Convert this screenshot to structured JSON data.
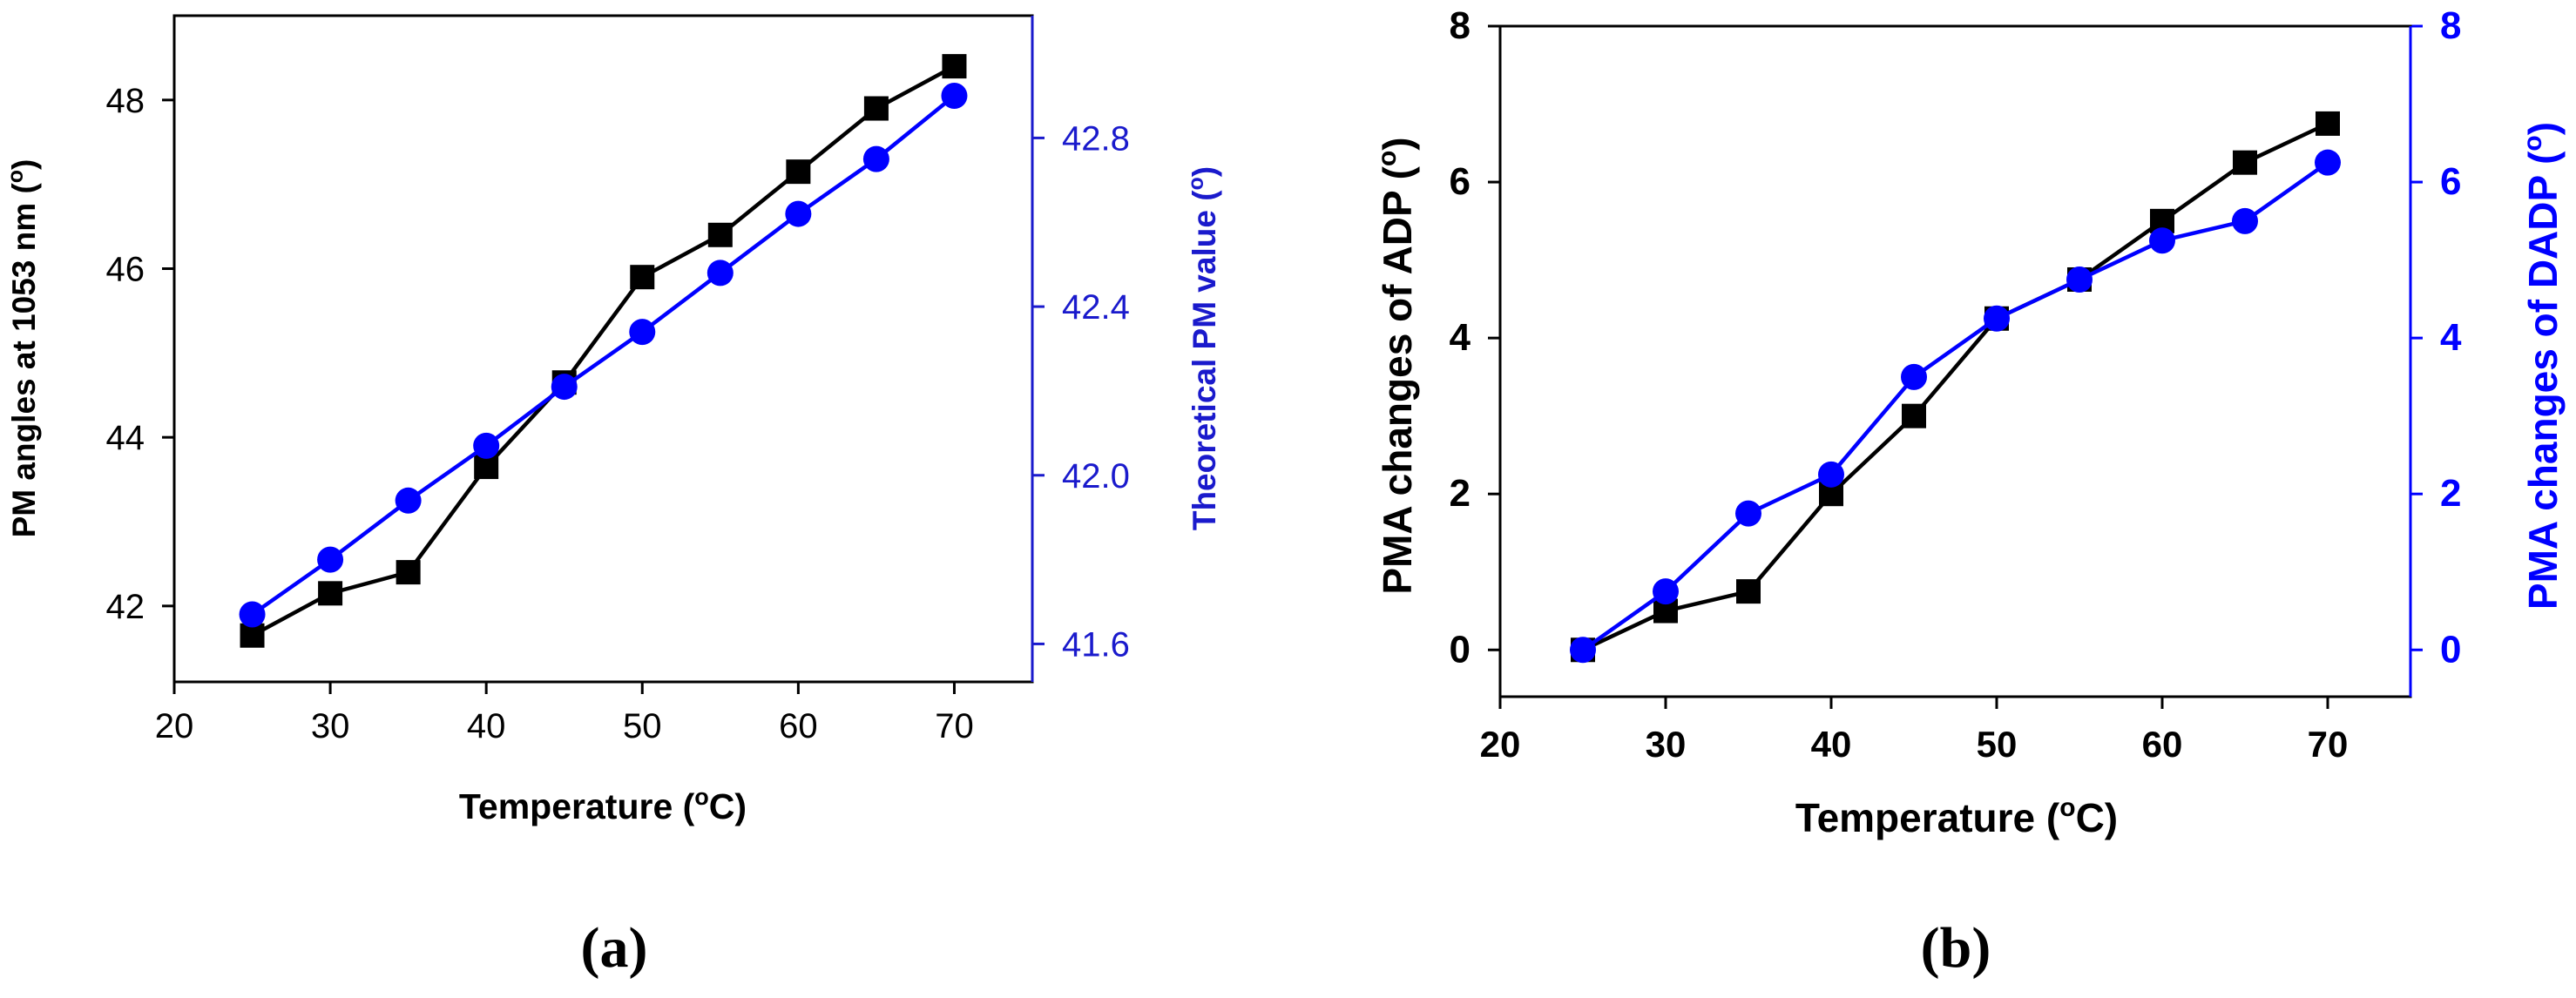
{
  "colors": {
    "left_series": "#000000",
    "right_series": "#0000ff",
    "right_axis": "#1a1acc"
  },
  "panels": [
    {
      "id": "a",
      "label": "(a)",
      "xlabel": "Temperature (",
      "xlabel_sup": "o",
      "xlabel_end": "C)",
      "ylabel_left": "PM angles at 1053 nm (",
      "ylabel_left_sup": "o",
      "ylabel_left_end": ")",
      "ylabel_right": "Theoretical PM value (",
      "ylabel_right_sup": "o",
      "ylabel_right_end": ")"
    },
    {
      "id": "b",
      "label": "(b)",
      "xlabel": "Temperature (",
      "xlabel_sup": "o",
      "xlabel_end": "C)",
      "ylabel_left": "PMA changes of ADP (",
      "ylabel_left_sup": "o",
      "ylabel_left_end": ")",
      "ylabel_right": "PMA changes of DADP (",
      "ylabel_right_sup": "o",
      "ylabel_right_end": ")"
    }
  ],
  "chart_data": [
    {
      "type": "line",
      "title": "",
      "xlabel": "Temperature (oC)",
      "xlim": [
        20,
        75
      ],
      "xticks": [
        20,
        30,
        40,
        50,
        60,
        70
      ],
      "x": [
        25,
        30,
        35,
        40,
        45,
        50,
        55,
        60,
        65,
        70
      ],
      "series": [
        {
          "name": "PM angles at 1053 nm",
          "axis": "left",
          "marker": "square",
          "color": "#000000",
          "values": [
            41.65,
            42.15,
            42.4,
            43.65,
            44.65,
            45.9,
            46.4,
            47.15,
            47.9,
            48.4
          ]
        },
        {
          "name": "Theoretical PM value",
          "axis": "right",
          "marker": "circle",
          "color": "#0000ff",
          "values": [
            41.67,
            41.8,
            41.94,
            42.07,
            42.21,
            42.34,
            42.48,
            42.62,
            42.75,
            42.9
          ]
        }
      ],
      "ylabel_left": "PM angles at 1053 nm (o)",
      "ylim_left": [
        41.1,
        49.0
      ],
      "yticks_left": [
        42,
        44,
        46,
        48
      ],
      "ylabel_right": "Theoretical PM value (o)",
      "ylim_right": [
        41.51,
        43.09
      ],
      "yticks_right": [
        "41.6",
        "42.0",
        "42.4",
        "42.8"
      ],
      "grid": false
    },
    {
      "type": "line",
      "title": "",
      "xlabel": "Temperature (oC)",
      "xlim": [
        20,
        75
      ],
      "xticks": [
        20,
        30,
        40,
        50,
        60,
        70
      ],
      "x": [
        25,
        30,
        35,
        40,
        45,
        50,
        55,
        60,
        65,
        70
      ],
      "series": [
        {
          "name": "PMA changes of ADP",
          "axis": "left",
          "marker": "square",
          "color": "#000000",
          "values": [
            0,
            0.5,
            0.75,
            2.0,
            3.0,
            4.25,
            4.75,
            5.5,
            6.25,
            6.75
          ]
        },
        {
          "name": "PMA changes of DADP",
          "axis": "right",
          "marker": "circle",
          "color": "#0000ff",
          "values": [
            0,
            0.75,
            1.75,
            2.25,
            3.5,
            4.25,
            4.75,
            5.25,
            5.5,
            6.25
          ]
        }
      ],
      "ylabel_left": "PMA changes of ADP (o)",
      "ylim_left": [
        -0.6,
        8
      ],
      "yticks_left": [
        0,
        2,
        4,
        6,
        8
      ],
      "ylabel_right": "PMA changes of DADP (o)",
      "ylim_right": [
        -0.6,
        8
      ],
      "yticks_right": [
        "0",
        "2",
        "4",
        "6",
        "8"
      ],
      "grid": false
    }
  ]
}
